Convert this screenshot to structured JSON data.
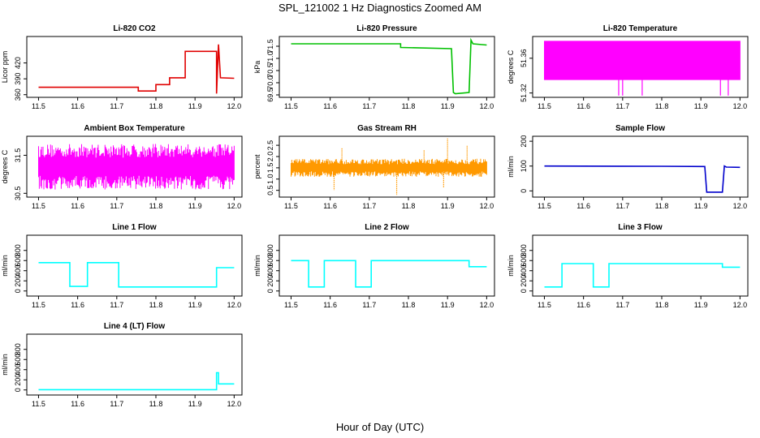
{
  "figure": {
    "title": "SPL_121002  1 Hz Diagnostics Zoomed AM",
    "xlabel": "Hour of Day (UTC)"
  },
  "chart_data": [
    {
      "type": "line",
      "title": "Li-820 CO2",
      "ylabel": "Licor ppm",
      "color": "#e00000",
      "xlim": [
        11.47,
        12.02
      ],
      "ylim": [
        355,
        470
      ],
      "xticks": [
        "11.5",
        "11.6",
        "11.7",
        "11.8",
        "11.9",
        "12.0"
      ],
      "yticks": [
        "360",
        "390",
        "420"
      ],
      "series": [
        {
          "x": [
            11.5,
            11.755,
            11.755,
            11.8,
            11.8,
            11.835,
            11.835,
            11.875,
            11.875,
            11.955,
            11.955,
            11.96,
            11.965,
            11.965,
            12.0
          ],
          "y": [
            374,
            374,
            367,
            367,
            379,
            379,
            392,
            392,
            442,
            442,
            362,
            455,
            392,
            392,
            391
          ]
        }
      ]
    },
    {
      "type": "line",
      "title": "Li-820 Pressure",
      "ylabel": "kPa",
      "color": "#00c000",
      "xlim": [
        11.47,
        12.02
      ],
      "ylim": [
        69.4,
        71.9
      ],
      "xticks": [
        "11.5",
        "11.6",
        "11.7",
        "11.8",
        "11.9",
        "12.0"
      ],
      "yticks": [
        "69.5",
        "70.0",
        "70.5",
        "71.0",
        "71.5"
      ],
      "series": [
        {
          "x": [
            11.5,
            11.78,
            11.78,
            11.91,
            11.915,
            11.92,
            11.955,
            11.96,
            11.965,
            12.0
          ],
          "y": [
            71.6,
            71.6,
            71.45,
            71.4,
            69.6,
            69.55,
            69.6,
            71.75,
            71.6,
            71.55
          ]
        }
      ]
    },
    {
      "type": "line",
      "title": "Li-820 Temperature",
      "ylabel": "degrees C",
      "color": "#ff00ff",
      "xlim": [
        11.47,
        12.02
      ],
      "ylim": [
        51.315,
        51.385
      ],
      "xticks": [
        "11.5",
        "11.6",
        "11.7",
        "11.8",
        "11.9",
        "12.0"
      ],
      "yticks": [
        "51.32",
        "51.36"
      ],
      "series": [
        {
          "band_low": 51.335,
          "band_high": 51.38,
          "dips": [
            11.69,
            11.7,
            11.75,
            11.95,
            11.97
          ],
          "dip_value": 51.317
        }
      ]
    },
    {
      "type": "line",
      "title": "Ambient Box Temperature",
      "ylabel": "degrees C",
      "color": "#ff00ff",
      "xlim": [
        11.47,
        12.02
      ],
      "ylim": [
        30.4,
        32.0
      ],
      "xticks": [
        "11.5",
        "11.6",
        "11.7",
        "11.8",
        "11.9",
        "12.0"
      ],
      "yticks": [
        "30.5",
        "31.5"
      ],
      "series": [
        {
          "band_low": 30.7,
          "band_high": 31.9,
          "center": 31.2
        }
      ]
    },
    {
      "type": "line",
      "title": "Gas Stream RH",
      "ylabel": "percent",
      "color": "#ff9900",
      "xlim": [
        11.47,
        12.02
      ],
      "ylim": [
        0.2,
        2.9
      ],
      "xticks": [
        "11.5",
        "11.6",
        "11.7",
        "11.8",
        "11.9",
        "12.0"
      ],
      "yticks": [
        "0.5",
        "1.0",
        "1.5",
        "2.0",
        "2.5"
      ],
      "series": [
        {
          "band_low": 1.1,
          "band_high": 1.9,
          "center": 1.5,
          "spikes": [
            [
              11.61,
              0.5
            ],
            [
              11.63,
              2.4
            ],
            [
              11.77,
              0.3
            ],
            [
              11.84,
              2.3
            ],
            [
              11.89,
              0.6
            ],
            [
              11.9,
              2.8
            ],
            [
              11.95,
              2.5
            ]
          ]
        }
      ]
    },
    {
      "type": "line",
      "title": "Sample Flow",
      "ylabel": "ml/min",
      "color": "#0000cc",
      "xlim": [
        11.47,
        12.02
      ],
      "ylim": [
        -25,
        220
      ],
      "xticks": [
        "11.5",
        "11.6",
        "11.7",
        "11.8",
        "11.9",
        "12.0"
      ],
      "yticks": [
        "0",
        "100",
        "200"
      ],
      "series": [
        {
          "x": [
            11.5,
            11.8,
            11.91,
            11.915,
            11.955,
            11.96,
            11.965,
            12.0
          ],
          "y": [
            100,
            99,
            98,
            -5,
            -5,
            100,
            96,
            95
          ]
        }
      ]
    },
    {
      "type": "line",
      "title": "Line 1 Flow",
      "ylabel": "ml/min",
      "color": "#00ffff",
      "xlim": [
        11.47,
        12.02
      ],
      "ylim": [
        -100,
        1100
      ],
      "xticks": [
        "11.5",
        "11.6",
        "11.7",
        "11.8",
        "11.9",
        "12.0"
      ],
      "yticks": [
        "0",
        "200",
        "400",
        "600",
        "800"
      ],
      "series": [
        {
          "x": [
            11.5,
            11.58,
            11.58,
            11.625,
            11.625,
            11.705,
            11.705,
            11.955,
            11.955,
            12.0
          ],
          "y": [
            560,
            560,
            90,
            90,
            560,
            560,
            80,
            80,
            460,
            460
          ]
        }
      ]
    },
    {
      "type": "line",
      "title": "Line 2 Flow",
      "ylabel": "ml/min",
      "color": "#00ffff",
      "xlim": [
        11.47,
        12.02
      ],
      "ylim": [
        -100,
        1100
      ],
      "xticks": [
        "11.5",
        "11.6",
        "11.7",
        "11.8",
        "11.9",
        "12.0"
      ],
      "yticks": [
        "0",
        "200",
        "400",
        "600",
        "800"
      ],
      "series": [
        {
          "x": [
            11.5,
            11.545,
            11.545,
            11.585,
            11.585,
            11.665,
            11.665,
            11.705,
            11.705,
            11.955,
            11.955,
            12.0
          ],
          "y": [
            600,
            600,
            80,
            80,
            600,
            600,
            80,
            80,
            600,
            600,
            480,
            480
          ]
        }
      ]
    },
    {
      "type": "line",
      "title": "Line 3 Flow",
      "ylabel": "ml/min",
      "color": "#00ffff",
      "xlim": [
        11.47,
        12.02
      ],
      "ylim": [
        -100,
        1100
      ],
      "xticks": [
        "11.5",
        "11.6",
        "11.7",
        "11.8",
        "11.9",
        "12.0"
      ],
      "yticks": [
        "0",
        "200",
        "400",
        "600",
        "800"
      ],
      "series": [
        {
          "x": [
            11.5,
            11.545,
            11.545,
            11.625,
            11.625,
            11.665,
            11.665,
            11.955,
            11.955,
            12.0
          ],
          "y": [
            80,
            80,
            540,
            540,
            80,
            80,
            540,
            540,
            470,
            470
          ]
        }
      ]
    },
    {
      "type": "line",
      "title": "Line 4 (LT) Flow",
      "ylabel": "ml/min",
      "color": "#00ffff",
      "xlim": [
        11.47,
        12.02
      ],
      "ylim": [
        -100,
        1100
      ],
      "xticks": [
        "11.5",
        "11.6",
        "11.7",
        "11.8",
        "11.9",
        "12.0"
      ],
      "yticks": [
        "0",
        "200",
        "400",
        "600",
        "800"
      ],
      "series": [
        {
          "x": [
            11.5,
            11.955,
            11.955,
            11.96,
            11.96,
            12.0
          ],
          "y": [
            5,
            5,
            340,
            340,
            120,
            120
          ]
        }
      ]
    }
  ]
}
